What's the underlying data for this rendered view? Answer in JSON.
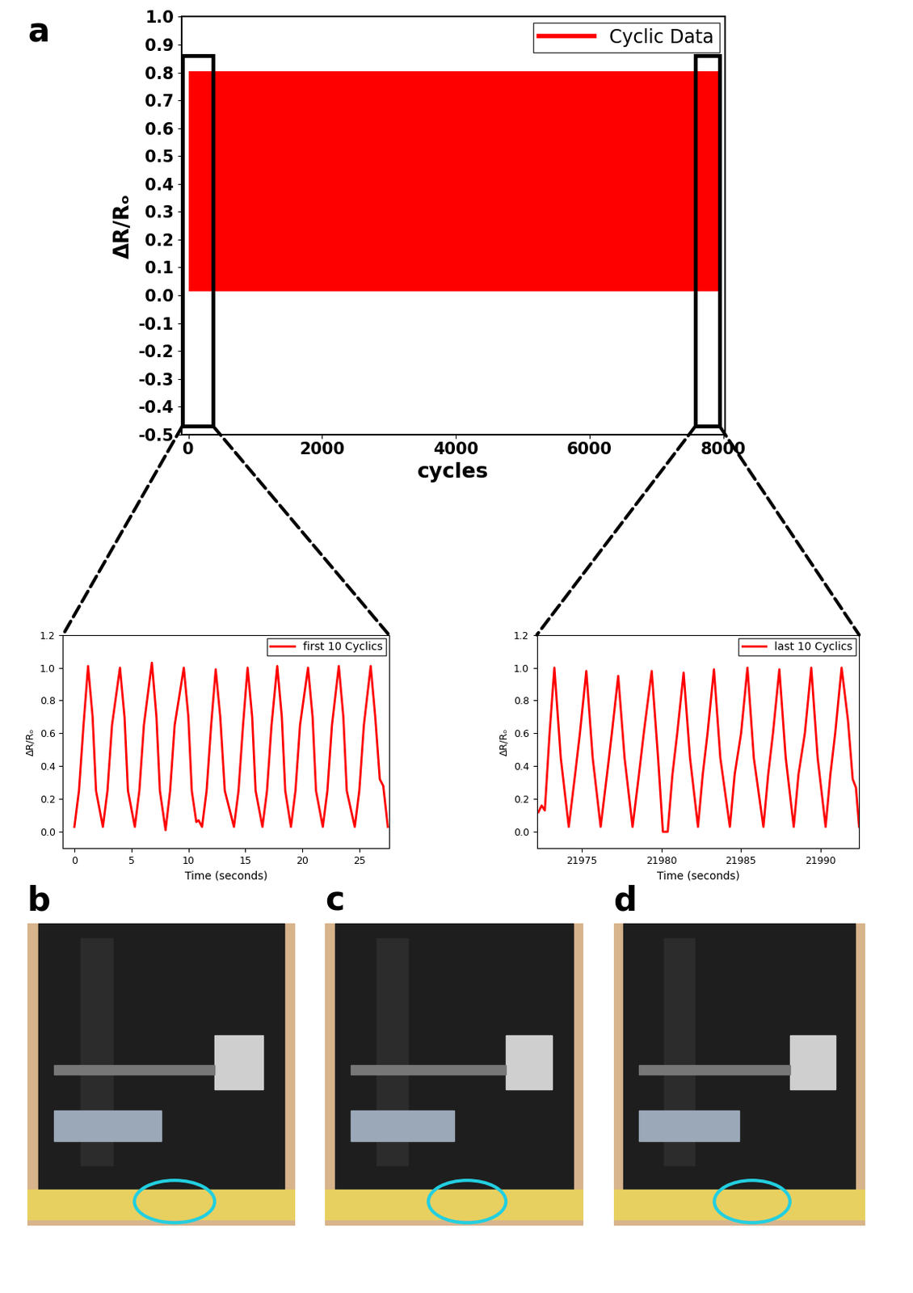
{
  "panel_labels": [
    "a",
    "b",
    "c",
    "d"
  ],
  "chart_data": [
    {
      "type": "area",
      "x_label": "cycles",
      "y_label": "ΔR/Rₒ",
      "x": [
        0,
        7930
      ],
      "series": [
        {
          "name": "Cyclic Data",
          "color": "#ff0000",
          "values": [
            0.805,
            0.805
          ],
          "baseline": [
            0.015,
            0.015
          ]
        }
      ],
      "xlim": [
        -100,
        8020
      ],
      "xticks": [
        0,
        2000,
        4000,
        6000,
        8000
      ],
      "ylim": [
        -0.5,
        1.0
      ],
      "yticks": [
        -0.5,
        -0.4,
        -0.3,
        -0.2,
        -0.1,
        {
          "value": 0,
          "label": "0.0"
        },
        0.1,
        0.2,
        0.3,
        0.4,
        0.5,
        0.6,
        0.7,
        0.8,
        0.9,
        {
          "value": 1,
          "label": "1.0"
        }
      ],
      "regions": [
        {
          "x": [
            -90,
            370
          ],
          "y": [
            -0.47,
            0.86
          ]
        },
        {
          "x": [
            7580,
            7940
          ],
          "y": [
            -0.47,
            0.86
          ]
        }
      ],
      "legend": "upper right"
    },
    {
      "type": "line",
      "x_label": "Time (seconds)",
      "y_label": "ΔR/Rₒ",
      "x": [
        0,
        0.4,
        0.8,
        1.2,
        1.6,
        1.9,
        2.5,
        2.9,
        3.3,
        4.0,
        4.4,
        4.7,
        5.3,
        5.7,
        6.1,
        6.8,
        7.2,
        7.5,
        8.0,
        8.4,
        8.8,
        9.6,
        10.0,
        10.3,
        10.7,
        10.9,
        11.2,
        11.6,
        12.0,
        12.4,
        12.8,
        13.2,
        14.0,
        14.4,
        14.8,
        15.2,
        15.6,
        15.9,
        16.5,
        16.9,
        17.3,
        17.8,
        18.2,
        18.5,
        19.0,
        19.4,
        19.8,
        20.5,
        20.9,
        21.2,
        21.8,
        22.2,
        22.6,
        23.2,
        23.6,
        23.9,
        24.6,
        25.0,
        25.4,
        26.0,
        26.4,
        26.8,
        27.1,
        27.5
      ],
      "series": [
        {
          "name": "first 10 Cyclics",
          "color": "#ff0000",
          "values": [
            0.03,
            0.25,
            0.65,
            1.01,
            0.7,
            0.25,
            0.03,
            0.25,
            0.65,
            1.0,
            0.7,
            0.25,
            0.03,
            0.25,
            0.65,
            1.03,
            0.7,
            0.25,
            0.01,
            0.25,
            0.65,
            1.0,
            0.7,
            0.25,
            0.06,
            0.07,
            0.03,
            0.25,
            0.65,
            0.99,
            0.7,
            0.25,
            0.03,
            0.25,
            0.65,
            1.0,
            0.7,
            0.25,
            0.03,
            0.25,
            0.65,
            1.01,
            0.7,
            0.25,
            0.03,
            0.25,
            0.65,
            1.0,
            0.7,
            0.25,
            0.03,
            0.25,
            0.65,
            1.01,
            0.7,
            0.25,
            0.03,
            0.25,
            0.65,
            1.01,
            0.7,
            0.32,
            0.28,
            0.03
          ]
        }
      ],
      "xlim": [
        -1,
        27.6
      ],
      "xticks": [
        0,
        5,
        10,
        15,
        20,
        25
      ],
      "ylim": [
        -0.1,
        1.2
      ],
      "yticks": [
        {
          "value": 0,
          "label": "0.0"
        },
        0.2,
        0.4,
        0.6,
        0.8,
        {
          "value": 1,
          "label": "1.0"
        },
        1.2
      ],
      "legend": "upper right"
    },
    {
      "type": "line",
      "x_label": "Time (seconds)",
      "y_label": "ΔR/Rₒ",
      "x": [
        21972.3,
        21972.5,
        21972.7,
        21973.0,
        21973.3,
        21973.7,
        21974.2,
        21974.6,
        21974.9,
        21975.3,
        21975.7,
        21976.2,
        21976.6,
        21976.9,
        21977.3,
        21977.7,
        21978.2,
        21978.6,
        21978.9,
        21979.4,
        21979.8,
        21980.1,
        21980.4,
        21980.7,
        21981.0,
        21981.4,
        21981.8,
        21982.3,
        21982.6,
        21982.9,
        21983.3,
        21983.7,
        21984.3,
        21984.6,
        21985.0,
        21985.4,
        21985.8,
        21986.4,
        21986.7,
        21987.0,
        21987.4,
        21987.8,
        21988.3,
        21988.6,
        21989.0,
        21989.4,
        21989.8,
        21990.3,
        21990.6,
        21990.9,
        21991.3,
        21991.7,
        21992.0,
        21992.2,
        21992.4
      ],
      "series": [
        {
          "name": "last 10 Cyclics",
          "color": "#ff0000",
          "values": [
            0.12,
            0.16,
            0.13,
            0.6,
            1.0,
            0.45,
            0.03,
            0.35,
            0.6,
            0.98,
            0.45,
            0.03,
            0.35,
            0.6,
            0.95,
            0.45,
            0.03,
            0.35,
            0.6,
            0.98,
            0.45,
            0.0,
            0.0,
            0.35,
            0.6,
            0.97,
            0.45,
            0.03,
            0.35,
            0.6,
            0.99,
            0.45,
            0.03,
            0.35,
            0.6,
            1.0,
            0.45,
            0.03,
            0.35,
            0.6,
            0.99,
            0.45,
            0.03,
            0.35,
            0.6,
            1.0,
            0.45,
            0.03,
            0.35,
            0.6,
            1.0,
            0.68,
            0.32,
            0.27,
            0.03
          ]
        }
      ],
      "xlim": [
        21972.2,
        21992.4
      ],
      "xticks": [
        21975,
        21980,
        21985,
        21990
      ],
      "ylim": [
        -0.1,
        1.2
      ],
      "yticks": [
        {
          "value": 0,
          "label": "0.0"
        },
        0.2,
        0.4,
        0.6,
        0.8,
        {
          "value": 1,
          "label": "1.0"
        },
        1.2
      ],
      "legend": "upper right"
    }
  ]
}
